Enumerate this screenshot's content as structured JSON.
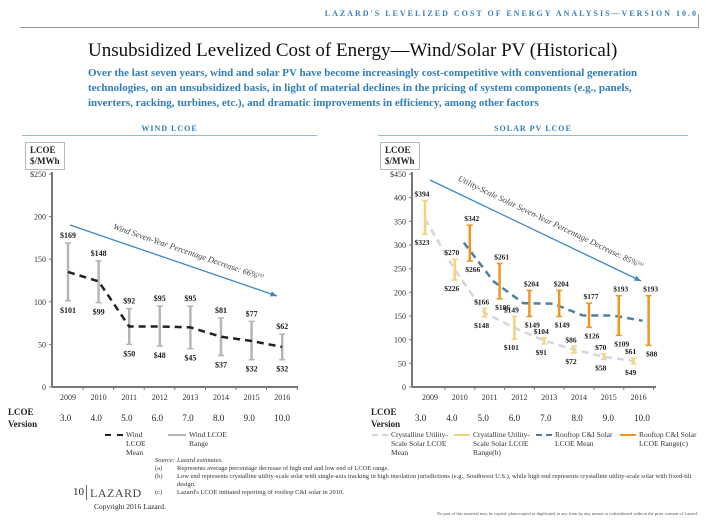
{
  "header": {
    "banner": "LAZARD'S LEVELIZED COST OF ENERGY ANALYSIS—VERSION 10.0"
  },
  "title": "Unsubsidized Levelized Cost of Energy—Wind/Solar PV (Historical)",
  "subtitle": "Over the last seven years, wind and solar PV have become increasingly cost-competitive with conventional generation technologies, on an unsubsidized basis, in light of material declines in the pricing of system components (e.g., panels, inverters, racking, turbines, etc.), and dramatic improvements in efficiency, among other factors",
  "wind": {
    "section": "WIND LCOE",
    "unit1": "LCOE",
    "unit2": "$/MWh",
    "version_label1": "LCOE",
    "version_label2": "Version",
    "versions": [
      "3.0",
      "4.0",
      "5.0",
      "6.0",
      "7.0",
      "8.0",
      "9.0",
      "10.0"
    ],
    "legend": {
      "mean": "Wind LCOE Mean",
      "range": "Wind LCOE Range"
    }
  },
  "solar": {
    "section": "SOLAR PV LCOE",
    "unit1": "LCOE",
    "unit2": "$/MWh",
    "version_label1": "LCOE",
    "version_label2": "Version",
    "versions": [
      "3.0",
      "4.0",
      "5.0",
      "6.0",
      "7.0",
      "8.0",
      "9.0",
      "10.0"
    ],
    "legend": {
      "util_mean": "Crystalline Utility-Scale Solar LCOE Mean",
      "util_range": "Crystalline Utility-Scale Solar LCOE Range(b)",
      "roof_mean": "Rooftop C&I Solar LCOE Mean",
      "roof_range": "Rooftop C&I Solar LCOE Range(c)"
    }
  },
  "chart_data": [
    {
      "type": "line",
      "title": "",
      "ylabel": "LCOE $/MWh",
      "ylim": [
        0,
        250
      ],
      "yticks": [
        "0",
        "50",
        "100",
        "150",
        "200",
        "$250"
      ],
      "categories": [
        "2009",
        "2010",
        "2011",
        "2012",
        "2013",
        "2014",
        "2015",
        "2016"
      ],
      "series": [
        {
          "name": "Wind LCOE Mean",
          "style": "dashed",
          "color": "#222222",
          "values": [
            135,
            124,
            71,
            71,
            70,
            59,
            54,
            47
          ]
        },
        {
          "name": "Wind LCOE Range",
          "type": "range",
          "color": "#b5b5b5",
          "high": [
            169,
            148,
            92,
            95,
            95,
            81,
            77,
            62
          ],
          "low": [
            101,
            99,
            50,
            48,
            45,
            37,
            32,
            32
          ]
        }
      ],
      "annotation": {
        "text": "Wind Seven-Year Percentage Decrease: 66%",
        "note": "(a)",
        "color": "#3a86c8"
      }
    },
    {
      "type": "line",
      "title": "",
      "ylabel": "LCOE $/MWh",
      "ylim": [
        0,
        450
      ],
      "yticks": [
        "0",
        "50",
        "100",
        "150",
        "200",
        "250",
        "300",
        "350",
        "400",
        "$450"
      ],
      "categories": [
        "2009",
        "2010",
        "2011",
        "2012",
        "2013",
        "2014",
        "2015",
        "2016"
      ],
      "series": [
        {
          "name": "Crystalline Utility-Scale Solar LCOE Mean",
          "style": "dashed",
          "color": "#cfd8e0",
          "values": [
            355,
            248,
            157,
            125,
            98,
            79,
            64,
            55
          ]
        },
        {
          "name": "Crystalline Utility-Scale Solar LCOE Range",
          "type": "range",
          "color": "#f7d27a",
          "high": [
            394,
            270,
            166,
            149,
            104,
            86,
            70,
            61
          ],
          "low": [
            323,
            226,
            148,
            101,
            91,
            72,
            58,
            49
          ]
        },
        {
          "name": "Rooftop C&I Solar LCOE Mean",
          "style": "dashed",
          "color": "#4f7fa0",
          "values": [
            null,
            305,
            223,
            177,
            176,
            151,
            151,
            140
          ]
        },
        {
          "name": "Rooftop C&I Solar LCOE Range",
          "type": "range",
          "color": "#f0961e",
          "high": [
            null,
            342,
            261,
            204,
            204,
            177,
            193,
            193
          ],
          "low": [
            null,
            266,
            186,
            149,
            149,
            126,
            109,
            88
          ]
        }
      ],
      "annotation": {
        "text": "Utility-Scale Solar Seven-Year Percentage Decrease: 85%",
        "note": "(a)",
        "color": "#3a86c8"
      }
    }
  ],
  "footnotes": {
    "source_label": "Source:",
    "source": "Lazard estimates.",
    "items": [
      {
        "mark": "(a)",
        "text": "Represents average percentage decrease of high end and low end of LCOE range."
      },
      {
        "mark": "(b)",
        "text": "Low end represents crystalline utility-scale solar with single-axis tracking in high insolation jurisdictions (e.g., Southwest U.S.), while high end represents crystalline utility-scale solar with fixed-tilt design."
      },
      {
        "mark": "(c)",
        "text": "Lazard's LCOE initiated reporting of rooftop C&I solar in 2010."
      }
    ]
  },
  "footer": {
    "page": "10",
    "logo": "LAZARD",
    "copyright": "Copyright 2016 Lazard.",
    "disclaimer": "No part of this material may be copied, photocopied or duplicated in any form by any means or redistributed without the prior consent of Lazard."
  }
}
